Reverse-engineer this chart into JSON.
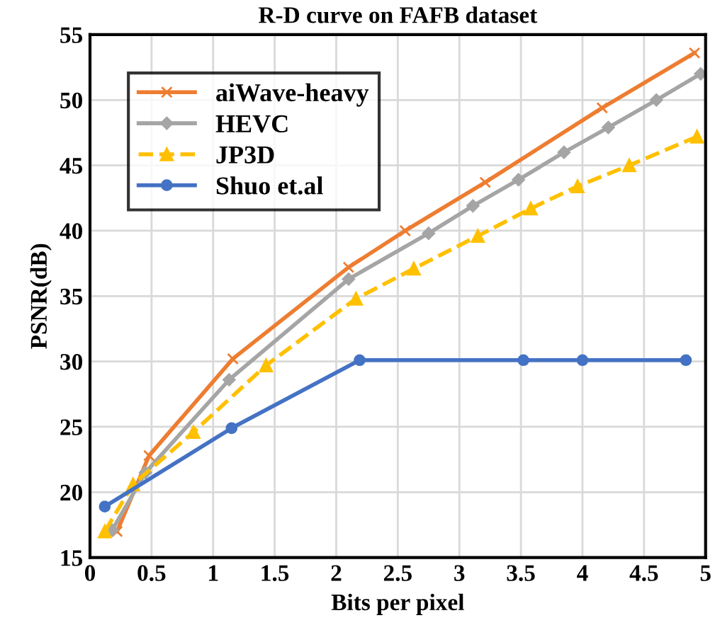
{
  "chart_data": {
    "type": "line",
    "title": "R-D curve on FAFB dataset",
    "xlabel": "Bits per pixel",
    "ylabel": "PSNR(dB)",
    "xlim": [
      0,
      5
    ],
    "xticks": [
      0,
      0.5,
      1,
      1.5,
      2,
      2.5,
      3,
      3.5,
      4,
      4.5,
      5
    ],
    "ylim": [
      15,
      55
    ],
    "yticks": [
      15,
      20,
      25,
      30,
      35,
      40,
      45,
      50,
      55
    ],
    "grid": true,
    "legend": "top left",
    "series": [
      {
        "name": "aiWave-heavy",
        "color": "#ed7d31",
        "marker": "cross",
        "line_style": "solid",
        "x": [
          0.22,
          0.48,
          1.16,
          2.1,
          2.56,
          3.21,
          4.16,
          4.91
        ],
        "values": [
          17.0,
          22.8,
          30.2,
          37.2,
          40.0,
          43.7,
          49.4,
          53.6
        ]
      },
      {
        "name": "HEVC",
        "color": "#a5a5a5",
        "marker": "diamond",
        "line_style": "solid",
        "x": [
          0.18,
          0.45,
          1.13,
          2.1,
          2.75,
          3.11,
          3.48,
          3.85,
          4.21,
          4.6,
          4.96
        ],
        "values": [
          17.1,
          21.5,
          28.6,
          36.3,
          39.8,
          41.9,
          43.9,
          46.0,
          47.9,
          50.0,
          52.0
        ]
      },
      {
        "name": "JP3D",
        "color": "#ffc000",
        "marker": "triangle",
        "line_style": "dashed",
        "x": [
          0.12,
          0.35,
          0.84,
          1.43,
          2.16,
          2.63,
          3.15,
          3.58,
          3.96,
          4.38,
          4.93
        ],
        "values": [
          17.0,
          20.6,
          24.6,
          29.7,
          34.8,
          37.1,
          39.6,
          41.7,
          43.4,
          45.0,
          47.2
        ]
      },
      {
        "name": "Shuo et.al",
        "color": "#4472c4",
        "marker": "circle",
        "line_style": "solid",
        "x": [
          0.12,
          1.15,
          2.19,
          3.52,
          4.0,
          4.84
        ],
        "values": [
          18.9,
          24.9,
          30.1,
          30.1,
          30.1,
          30.1
        ]
      }
    ]
  }
}
